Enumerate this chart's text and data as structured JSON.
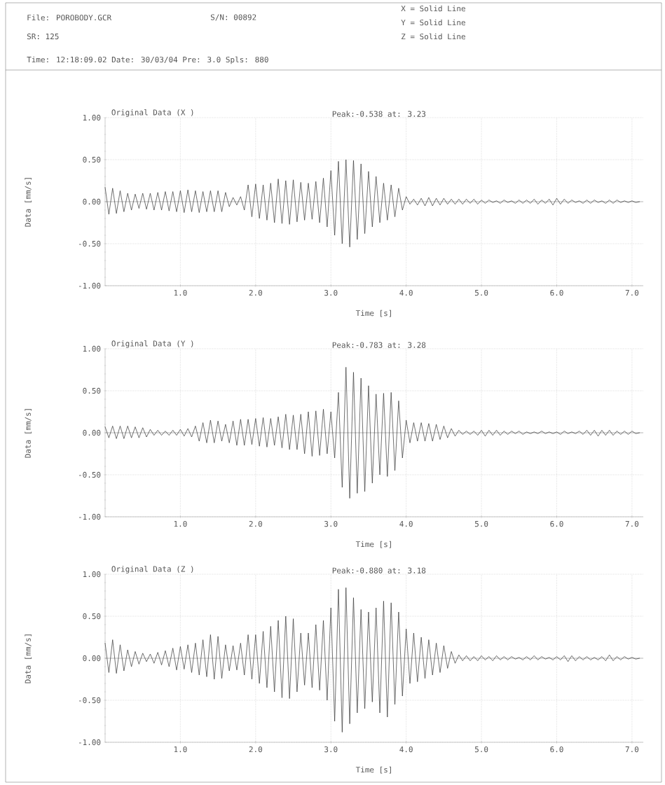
{
  "chart_data": [
    {
      "type": "other",
      "annotations": [
        "File: POROBODY.GCR",
        "S/N: 00892",
        "SR: 125",
        "Time: 12:18:09.02 Date: 30/03/04 Pre: 3.0 Spls: 880",
        "X = Solid Line",
        "Y = Solid Line",
        "Z = Solid Line"
      ]
    },
    {
      "type": "line",
      "title": "Original Data (X )",
      "annotations": [
        "Peak:-0.538 at: 3.23"
      ],
      "xlabel": "Time [s]",
      "ylabel": "Data [mm/s]",
      "xlim": [
        0,
        7.15
      ],
      "ylim": [
        -1,
        1
      ],
      "xticks": [
        {
          "value": 1,
          "label": "1.0"
        },
        {
          "value": 2,
          "label": "2.0"
        },
        {
          "value": 3,
          "label": "3.0"
        },
        {
          "value": 4,
          "label": "4.0"
        },
        {
          "value": 5,
          "label": "5.0"
        },
        {
          "value": 6,
          "label": "6.0"
        },
        {
          "value": 7,
          "label": "7.0"
        }
      ],
      "yticks": [
        {
          "value": 1,
          "label": "1.00"
        },
        {
          "value": 0.5,
          "label": "0.50"
        },
        {
          "value": 0,
          "label": "0.00"
        },
        {
          "value": -0.5,
          "label": "-0.50"
        },
        {
          "value": -1,
          "label": "-1.00"
        }
      ],
      "grid": true,
      "marker": "none",
      "line_style": "solid",
      "x": [
        0,
        0.05,
        0.1,
        0.15,
        0.2,
        0.25,
        0.3,
        0.35,
        0.4,
        0.45,
        0.5,
        0.55,
        0.6,
        0.65,
        0.7,
        0.75,
        0.8,
        0.85,
        0.9,
        0.95,
        1,
        1.05,
        1.1,
        1.15,
        1.2,
        1.25,
        1.3,
        1.35,
        1.4,
        1.45,
        1.5,
        1.55,
        1.6,
        1.65,
        1.7,
        1.75,
        1.8,
        1.85,
        1.9,
        1.95,
        2,
        2.05,
        2.1,
        2.15,
        2.2,
        2.25,
        2.3,
        2.35,
        2.4,
        2.45,
        2.5,
        2.55,
        2.6,
        2.65,
        2.7,
        2.75,
        2.8,
        2.85,
        2.9,
        2.95,
        3,
        3.05,
        3.1,
        3.15,
        3.2,
        3.25,
        3.3,
        3.35,
        3.4,
        3.45,
        3.5,
        3.55,
        3.6,
        3.65,
        3.7,
        3.75,
        3.8,
        3.85,
        3.9,
        3.95,
        4,
        4.05,
        4.1,
        4.15,
        4.2,
        4.25,
        4.3,
        4.35,
        4.4,
        4.45,
        4.5,
        4.55,
        4.6,
        4.65,
        4.7,
        4.75,
        4.8,
        4.85,
        4.9,
        4.95,
        5,
        5.05,
        5.1,
        5.15,
        5.2,
        5.25,
        5.3,
        5.35,
        5.4,
        5.45,
        5.5,
        5.55,
        5.6,
        5.65,
        5.7,
        5.75,
        5.8,
        5.85,
        5.9,
        5.95,
        6,
        6.05,
        6.1,
        6.15,
        6.2,
        6.25,
        6.3,
        6.35,
        6.4,
        6.45,
        6.5,
        6.55,
        6.6,
        6.65,
        6.7,
        6.75,
        6.8,
        6.85,
        6.9,
        6.95,
        7,
        7.05,
        7.1
      ],
      "series": [
        {
          "color": "#333333",
          "values": [
            0.17,
            -0.15,
            0.16,
            -0.14,
            0.13,
            -0.12,
            0.1,
            -0.1,
            0.09,
            -0.08,
            0.1,
            -0.09,
            0.1,
            -0.1,
            0.11,
            -0.1,
            0.12,
            -0.11,
            0.12,
            -0.12,
            0.13,
            -0.13,
            0.14,
            -0.12,
            0.13,
            -0.13,
            0.12,
            -0.12,
            0.13,
            -0.12,
            0.13,
            -0.12,
            0.11,
            -0.06,
            0.05,
            -0.04,
            0.06,
            -0.1,
            0.2,
            -0.18,
            0.21,
            -0.2,
            0.2,
            -0.22,
            0.22,
            -0.25,
            0.27,
            -0.26,
            0.25,
            -0.27,
            0.26,
            -0.24,
            0.23,
            -0.22,
            0.22,
            -0.21,
            0.24,
            -0.25,
            0.28,
            -0.3,
            0.37,
            -0.4,
            0.48,
            -0.5,
            0.5,
            -0.54,
            0.49,
            -0.45,
            0.45,
            -0.38,
            0.36,
            -0.3,
            0.3,
            -0.25,
            0.22,
            -0.22,
            0.2,
            -0.18,
            0.16,
            -0.1,
            0.06,
            -0.03,
            0.03,
            -0.04,
            0.04,
            -0.05,
            0.05,
            -0.05,
            0.04,
            -0.04,
            0.04,
            -0.03,
            0.03,
            -0.03,
            0.03,
            -0.03,
            0.03,
            -0.02,
            0.03,
            -0.03,
            0.02,
            -0.02,
            0.02,
            -0.01,
            0.01,
            -0.02,
            0.02,
            -0.01,
            0.01,
            -0.02,
            0.02,
            -0.02,
            0.02,
            -0.02,
            0.03,
            -0.03,
            0.02,
            -0.02,
            0.03,
            -0.04,
            0.04,
            -0.03,
            0.03,
            -0.02,
            0.02,
            -0.01,
            0.01,
            -0.02,
            0.02,
            -0.02,
            0.02,
            -0.01,
            0.01,
            -0.02,
            0.02,
            -0.02,
            0.02,
            -0.01,
            0.01,
            -0.01,
            0.01,
            -0.01,
            0
          ]
        }
      ]
    },
    {
      "type": "line",
      "title": "Original Data (Y )",
      "annotations": [
        "Peak:-0.783 at: 3.28"
      ],
      "xlabel": "Time [s]",
      "ylabel": "Data [mm/s]",
      "xlim": [
        0,
        7.15
      ],
      "ylim": [
        -1,
        1
      ],
      "xticks": [
        {
          "value": 1,
          "label": "1.0"
        },
        {
          "value": 2,
          "label": "2.0"
        },
        {
          "value": 3,
          "label": "3.0"
        },
        {
          "value": 4,
          "label": "4.0"
        },
        {
          "value": 5,
          "label": "5.0"
        },
        {
          "value": 6,
          "label": "6.0"
        },
        {
          "value": 7,
          "label": "7.0"
        }
      ],
      "yticks": [
        {
          "value": 1,
          "label": "1.00"
        },
        {
          "value": 0.5,
          "label": "0.50"
        },
        {
          "value": 0,
          "label": "0.00"
        },
        {
          "value": -0.5,
          "label": "-0.50"
        },
        {
          "value": -1,
          "label": "-1.00"
        }
      ],
      "grid": true,
      "marker": "none",
      "line_style": "solid",
      "x": [
        0,
        0.05,
        0.1,
        0.15,
        0.2,
        0.25,
        0.3,
        0.35,
        0.4,
        0.45,
        0.5,
        0.55,
        0.6,
        0.65,
        0.7,
        0.75,
        0.8,
        0.85,
        0.9,
        0.95,
        1,
        1.05,
        1.1,
        1.15,
        1.2,
        1.25,
        1.3,
        1.35,
        1.4,
        1.45,
        1.5,
        1.55,
        1.6,
        1.65,
        1.7,
        1.75,
        1.8,
        1.85,
        1.9,
        1.95,
        2,
        2.05,
        2.1,
        2.15,
        2.2,
        2.25,
        2.3,
        2.35,
        2.4,
        2.45,
        2.5,
        2.55,
        2.6,
        2.65,
        2.7,
        2.75,
        2.8,
        2.85,
        2.9,
        2.95,
        3,
        3.05,
        3.1,
        3.15,
        3.2,
        3.25,
        3.3,
        3.35,
        3.4,
        3.45,
        3.5,
        3.55,
        3.6,
        3.65,
        3.7,
        3.75,
        3.8,
        3.85,
        3.9,
        3.95,
        4,
        4.05,
        4.1,
        4.15,
        4.2,
        4.25,
        4.3,
        4.35,
        4.4,
        4.45,
        4.5,
        4.55,
        4.6,
        4.65,
        4.7,
        4.75,
        4.8,
        4.85,
        4.9,
        4.95,
        5,
        5.05,
        5.1,
        5.15,
        5.2,
        5.25,
        5.3,
        5.35,
        5.4,
        5.45,
        5.5,
        5.55,
        5.6,
        5.65,
        5.7,
        5.75,
        5.8,
        5.85,
        5.9,
        5.95,
        6,
        6.05,
        6.1,
        6.15,
        6.2,
        6.25,
        6.3,
        6.35,
        6.4,
        6.45,
        6.5,
        6.55,
        6.6,
        6.65,
        6.7,
        6.75,
        6.8,
        6.85,
        6.9,
        6.95,
        7,
        7.05,
        7.1
      ],
      "series": [
        {
          "color": "#333333",
          "values": [
            0.07,
            -0.06,
            0.08,
            -0.07,
            0.08,
            -0.07,
            0.08,
            -0.06,
            0.07,
            -0.06,
            0.06,
            -0.05,
            0.04,
            -0.03,
            0.03,
            -0.03,
            0.02,
            -0.03,
            0.03,
            -0.03,
            0.04,
            -0.04,
            0.05,
            -0.05,
            0.08,
            -0.1,
            0.12,
            -0.12,
            0.15,
            -0.12,
            0.14,
            -0.1,
            0.1,
            -0.12,
            0.14,
            -0.15,
            0.16,
            -0.15,
            0.16,
            -0.14,
            0.17,
            -0.16,
            0.18,
            -0.17,
            0.17,
            -0.15,
            0.19,
            -0.18,
            0.22,
            -0.2,
            0.21,
            -0.2,
            0.22,
            -0.25,
            0.25,
            -0.28,
            0.26,
            -0.27,
            0.28,
            -0.25,
            0.25,
            -0.3,
            0.48,
            -0.65,
            0.78,
            -0.78,
            0.72,
            -0.72,
            0.65,
            -0.7,
            0.56,
            -0.6,
            0.46,
            -0.5,
            0.47,
            -0.52,
            0.48,
            -0.45,
            0.38,
            -0.3,
            0.15,
            -0.12,
            0.12,
            -0.1,
            0.12,
            -0.1,
            0.11,
            -0.1,
            0.1,
            -0.08,
            0.08,
            -0.06,
            0.05,
            -0.04,
            0.03,
            -0.02,
            0.02,
            -0.02,
            0.02,
            -0.03,
            0.03,
            -0.04,
            0.03,
            -0.03,
            0.03,
            -0.03,
            0.02,
            -0.02,
            0.02,
            -0.01,
            0.02,
            -0.02,
            0.01,
            -0.01,
            0.01,
            -0.01,
            0.02,
            -0.01,
            0.01,
            -0.01,
            0.01,
            -0.02,
            0.02,
            -0.01,
            0.01,
            -0.01,
            0.02,
            -0.02,
            0.03,
            -0.03,
            0.03,
            -0.04,
            0.03,
            -0.03,
            0.03,
            -0.03,
            0.02,
            -0.02,
            0.02,
            -0.02,
            0.02,
            -0.01,
            0
          ]
        }
      ]
    },
    {
      "type": "line",
      "title": "Original Data (Z )",
      "annotations": [
        "Peak:-0.880 at: 3.18"
      ],
      "xlabel": "Time [s]",
      "ylabel": "Data [mm/s]",
      "xlim": [
        0,
        7.15
      ],
      "ylim": [
        -1,
        1
      ],
      "xticks": [
        {
          "value": 1,
          "label": "1.0"
        },
        {
          "value": 2,
          "label": "2.0"
        },
        {
          "value": 3,
          "label": "3.0"
        },
        {
          "value": 4,
          "label": "4.0"
        },
        {
          "value": 5,
          "label": "5.0"
        },
        {
          "value": 6,
          "label": "6.0"
        },
        {
          "value": 7,
          "label": "7.0"
        }
      ],
      "yticks": [
        {
          "value": 1,
          "label": "1.00"
        },
        {
          "value": 0.5,
          "label": "0.50"
        },
        {
          "value": 0,
          "label": "0.00"
        },
        {
          "value": -0.5,
          "label": "-0.50"
        },
        {
          "value": -1,
          "label": "-1.00"
        }
      ],
      "grid": true,
      "marker": "none",
      "line_style": "solid",
      "x": [
        0,
        0.05,
        0.1,
        0.15,
        0.2,
        0.25,
        0.3,
        0.35,
        0.4,
        0.45,
        0.5,
        0.55,
        0.6,
        0.65,
        0.7,
        0.75,
        0.8,
        0.85,
        0.9,
        0.95,
        1,
        1.05,
        1.1,
        1.15,
        1.2,
        1.25,
        1.3,
        1.35,
        1.4,
        1.45,
        1.5,
        1.55,
        1.6,
        1.65,
        1.7,
        1.75,
        1.8,
        1.85,
        1.9,
        1.95,
        2,
        2.05,
        2.1,
        2.15,
        2.2,
        2.25,
        2.3,
        2.35,
        2.4,
        2.45,
        2.5,
        2.55,
        2.6,
        2.65,
        2.7,
        2.75,
        2.8,
        2.85,
        2.9,
        2.95,
        3,
        3.05,
        3.1,
        3.15,
        3.2,
        3.25,
        3.3,
        3.35,
        3.4,
        3.45,
        3.5,
        3.55,
        3.6,
        3.65,
        3.7,
        3.75,
        3.8,
        3.85,
        3.9,
        3.95,
        4,
        4.05,
        4.1,
        4.15,
        4.2,
        4.25,
        4.3,
        4.35,
        4.4,
        4.45,
        4.5,
        4.55,
        4.6,
        4.65,
        4.7,
        4.75,
        4.8,
        4.85,
        4.9,
        4.95,
        5,
        5.05,
        5.1,
        5.15,
        5.2,
        5.25,
        5.3,
        5.35,
        5.4,
        5.45,
        5.5,
        5.55,
        5.6,
        5.65,
        5.7,
        5.75,
        5.8,
        5.85,
        5.9,
        5.95,
        6,
        6.05,
        6.1,
        6.15,
        6.2,
        6.25,
        6.3,
        6.35,
        6.4,
        6.45,
        6.5,
        6.55,
        6.6,
        6.65,
        6.7,
        6.75,
        6.8,
        6.85,
        6.9,
        6.95,
        7,
        7.05,
        7.1
      ],
      "series": [
        {
          "color": "#333333",
          "values": [
            0.18,
            -0.17,
            0.22,
            -0.18,
            0.16,
            -0.15,
            0.1,
            -0.1,
            0.08,
            -0.07,
            0.06,
            -0.04,
            0.05,
            -0.06,
            0.07,
            -0.08,
            0.09,
            -0.1,
            0.12,
            -0.14,
            0.14,
            -0.13,
            0.16,
            -0.17,
            0.18,
            -0.2,
            0.22,
            -0.22,
            0.28,
            -0.25,
            0.26,
            -0.24,
            0.16,
            -0.15,
            0.15,
            -0.14,
            0.18,
            -0.2,
            0.28,
            -0.25,
            0.28,
            -0.3,
            0.32,
            -0.35,
            0.38,
            -0.4,
            0.45,
            -0.47,
            0.5,
            -0.48,
            0.47,
            -0.4,
            0.3,
            -0.32,
            0.3,
            -0.35,
            0.4,
            -0.38,
            0.45,
            -0.5,
            0.6,
            -0.75,
            0.82,
            -0.88,
            0.84,
            -0.78,
            0.72,
            -0.65,
            0.58,
            -0.6,
            0.55,
            -0.52,
            0.6,
            -0.65,
            0.68,
            -0.7,
            0.66,
            -0.55,
            0.55,
            -0.45,
            0.35,
            -0.3,
            0.3,
            -0.28,
            0.25,
            -0.24,
            0.22,
            -0.2,
            0.18,
            -0.17,
            0.15,
            -0.12,
            0.08,
            -0.06,
            0.04,
            -0.03,
            0.03,
            -0.03,
            0.02,
            -0.03,
            0.03,
            -0.02,
            0.02,
            -0.03,
            0.03,
            -0.02,
            0.02,
            -0.02,
            0.02,
            -0.01,
            0.01,
            -0.02,
            0.02,
            -0.02,
            0.03,
            -0.02,
            0.02,
            -0.01,
            0.01,
            -0.02,
            0.02,
            -0.02,
            0.03,
            -0.04,
            0.03,
            -0.03,
            0.02,
            -0.02,
            0.02,
            -0.02,
            0.01,
            -0.02,
            0.02,
            -0.03,
            0.04,
            -0.03,
            0.02,
            -0.02,
            0.02,
            -0.01,
            0.01,
            -0.01,
            0
          ]
        }
      ]
    }
  ]
}
